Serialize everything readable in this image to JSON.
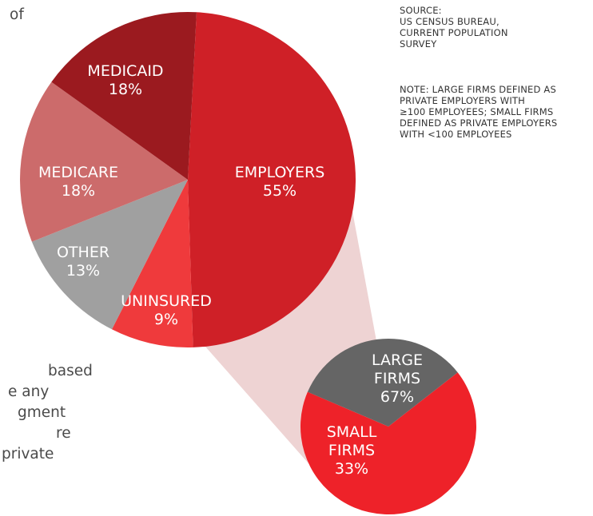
{
  "intro_fragment": "of",
  "body_fragments": [
    "based",
    "e any",
    "gment",
    "re",
    "private"
  ],
  "source_lines": [
    "SOURCE:",
    "US CENSUS BUREAU,",
    "CURRENT POPULATION",
    "SURVEY"
  ],
  "note_lines": [
    "NOTE: LARGE FIRMS DEFINED AS",
    "PRIVATE EMPLOYERS WITH",
    "≥100 EMPLOYEES; SMALL FIRMS",
    "DEFINED AS PRIVATE EMPLOYERS",
    "WITH  <100 EMPLOYEES"
  ],
  "colors": {
    "employers": "#cf2027",
    "medicaid": "#9b1a1f",
    "medicare": "#cc6b6b",
    "other": "#a0a0a0",
    "uninsured": "#ef3a3c",
    "large_firms": "#ee2229",
    "small_firms": "#656565",
    "connector": "#eed3d3"
  },
  "chart_data": [
    {
      "type": "pie",
      "slices": [
        {
          "key": "employers",
          "label": "EMPLOYERS",
          "value_label": "55%",
          "value": 55
        },
        {
          "key": "uninsured",
          "label": "UNINSURED",
          "value_label": "9%",
          "value": 9
        },
        {
          "key": "other",
          "label": "OTHER",
          "value_label": "13%",
          "value": 13
        },
        {
          "key": "medicare",
          "label": "MEDICARE",
          "value_label": "18%",
          "value": 18
        },
        {
          "key": "medicaid",
          "label": "MEDICAID",
          "value_label": "18%",
          "value": 18
        }
      ]
    },
    {
      "type": "pie",
      "slices": [
        {
          "key": "large_firms",
          "label": "LARGE FIRMS",
          "value_label": "67%",
          "value": 67
        },
        {
          "key": "small_firms",
          "label": "SMALL FIRMS",
          "value_label": "33%",
          "value": 33
        }
      ]
    }
  ]
}
